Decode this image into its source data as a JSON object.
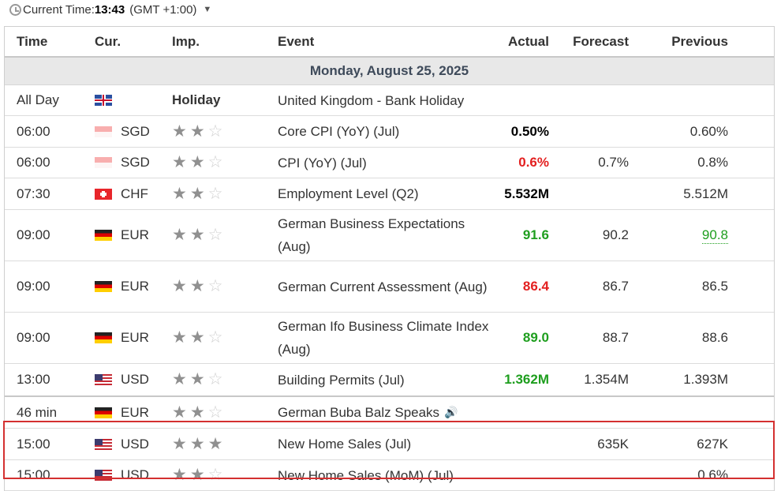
{
  "topbar": {
    "label": "Current Time:",
    "time": "13:43",
    "timezone": "(GMT +1:00)",
    "icons": [
      "clock-icon",
      "chevron-down-icon"
    ]
  },
  "headers": {
    "time": "Time",
    "currency": "Cur.",
    "importance": "Imp.",
    "event": "Event",
    "actual": "Actual",
    "forecast": "Forecast",
    "previous": "Previous"
  },
  "date": "Monday, August 25, 2025",
  "rows": [
    {
      "time": "All Day",
      "flag": "gb",
      "cur": "",
      "imp_text": "Holiday",
      "event": "United Kingdom - Bank Holiday",
      "actual": "",
      "forecast": "",
      "previous": ""
    },
    {
      "time": "06:00",
      "flag": "sg",
      "cur": "SGD",
      "stars": 2,
      "event": "Core CPI (YoY) (Jul)",
      "actual": "0.50%",
      "actual_color": "black",
      "forecast": "",
      "previous": "0.60%"
    },
    {
      "time": "06:00",
      "flag": "sg",
      "cur": "SGD",
      "stars": 2,
      "event": "CPI (YoY) (Jul)",
      "actual": "0.6%",
      "actual_color": "red",
      "forecast": "0.7%",
      "previous": "0.8%"
    },
    {
      "time": "07:30",
      "flag": "ch",
      "cur": "CHF",
      "stars": 2,
      "event": "Employment Level (Q2)",
      "actual": "5.532M",
      "actual_color": "black",
      "forecast": "",
      "previous": "5.512M"
    },
    {
      "time": "09:00",
      "flag": "de",
      "cur": "EUR",
      "stars": 2,
      "event": "German Business Expectations (Aug)",
      "actual": "91.6",
      "actual_color": "green",
      "forecast": "90.2",
      "previous": "90.8",
      "previous_revised": true
    },
    {
      "time": "09:00",
      "flag": "de",
      "cur": "EUR",
      "stars": 2,
      "event": "German Current Assessment (Aug)",
      "actual": "86.4",
      "actual_color": "red",
      "forecast": "86.7",
      "previous": "86.5"
    },
    {
      "time": "09:00",
      "flag": "de",
      "cur": "EUR",
      "stars": 2,
      "event": "German Ifo Business Climate Index (Aug)",
      "actual": "89.0",
      "actual_color": "green",
      "forecast": "88.7",
      "previous": "88.6"
    },
    {
      "time": "13:00",
      "flag": "us",
      "cur": "USD",
      "stars": 2,
      "event": "Building Permits (Jul)",
      "actual": "1.362M",
      "actual_color": "green",
      "forecast": "1.354M",
      "previous": "1.393M"
    },
    {
      "time": "46 min",
      "flag": "de",
      "cur": "EUR",
      "stars": 2,
      "event": "German Buba Balz Speaks",
      "actual": "",
      "forecast": "",
      "previous": "",
      "speech": true
    },
    {
      "time": "15:00",
      "flag": "us",
      "cur": "USD",
      "stars": 3,
      "event": "New Home Sales (Jul)",
      "actual": "",
      "forecast": "635K",
      "previous": "627K"
    },
    {
      "time": "15:00",
      "flag": "us",
      "cur": "USD",
      "stars": 2,
      "event": "New Home Sales (MoM) (Jul)",
      "actual": "",
      "forecast": "",
      "previous": "0.6%"
    }
  ]
}
